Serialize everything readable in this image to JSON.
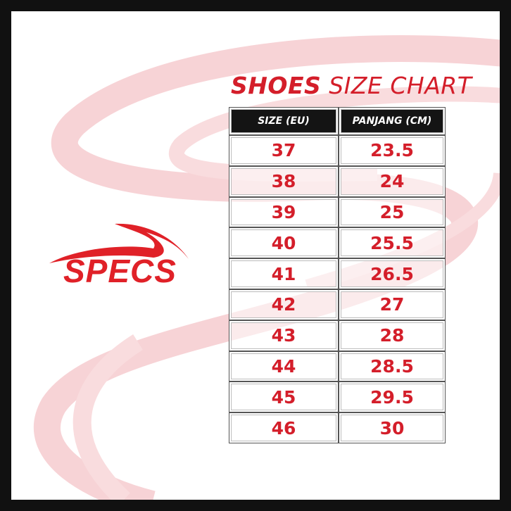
{
  "title": {
    "bold": "SHOES",
    "light": "SIZE CHART"
  },
  "brand": {
    "name": "SPECS"
  },
  "colors": {
    "accent": "#d41e2a",
    "header_bg": "#141414",
    "swoosh": "#f7d3d6"
  },
  "table": {
    "headers": [
      "SIZE (EU)",
      "PANJANG (CM)"
    ],
    "rows": [
      [
        "37",
        "23.5"
      ],
      [
        "38",
        "24"
      ],
      [
        "39",
        "25"
      ],
      [
        "40",
        "25.5"
      ],
      [
        "41",
        "26.5"
      ],
      [
        "42",
        "27"
      ],
      [
        "43",
        "28"
      ],
      [
        "44",
        "28.5"
      ],
      [
        "45",
        "29.5"
      ],
      [
        "46",
        "30"
      ]
    ]
  }
}
